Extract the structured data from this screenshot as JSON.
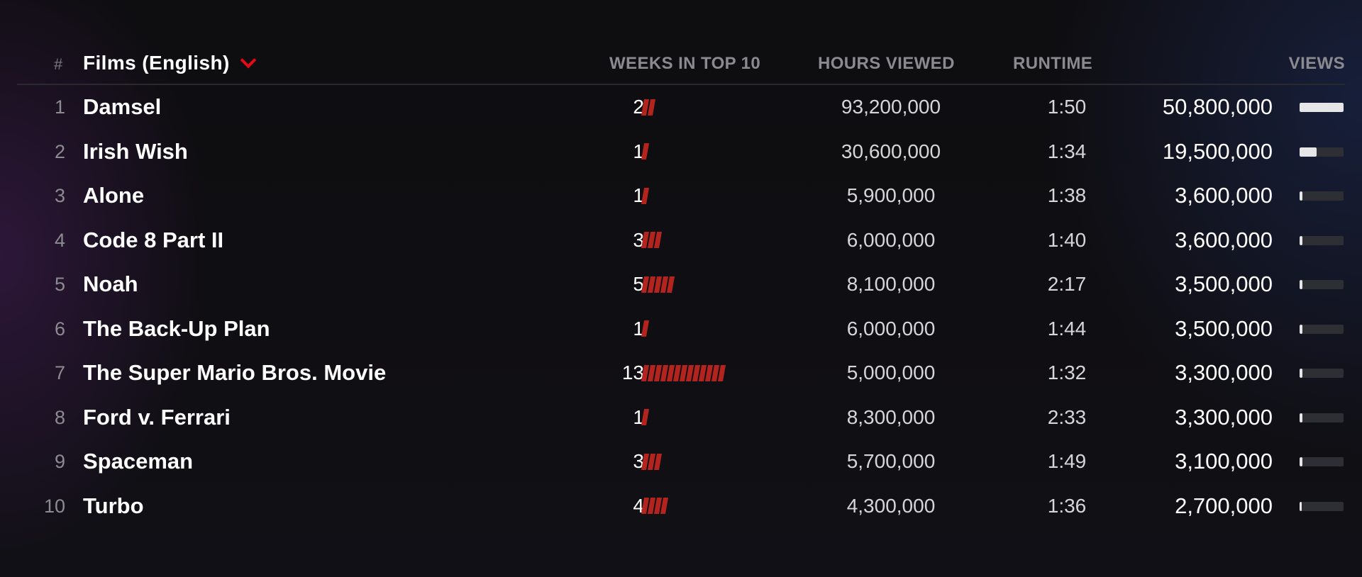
{
  "header": {
    "rank": "#",
    "title": "Films (English)",
    "weeks": "WEEKS IN TOP 10",
    "hours": "HOURS VIEWED",
    "runtime": "RUNTIME",
    "views": "VIEWS"
  },
  "colors": {
    "accent": "#e50914",
    "weeks_bar": "#b3241f",
    "views_bar": "#e6e6e8",
    "views_track": "#2e2f35"
  },
  "rows": [
    {
      "rank": "1",
      "title": "Damsel",
      "weeks": "2",
      "weeks_count": 2,
      "hours": "93,200,000",
      "runtime": "1:50",
      "views": "50,800,000",
      "views_share": 1.0
    },
    {
      "rank": "2",
      "title": "Irish Wish",
      "weeks": "1",
      "weeks_count": 1,
      "hours": "30,600,000",
      "runtime": "1:34",
      "views": "19,500,000",
      "views_share": 0.384
    },
    {
      "rank": "3",
      "title": "Alone",
      "weeks": "1",
      "weeks_count": 1,
      "hours": "5,900,000",
      "runtime": "1:38",
      "views": "3,600,000",
      "views_share": 0.071
    },
    {
      "rank": "4",
      "title": "Code 8 Part II",
      "weeks": "3",
      "weeks_count": 3,
      "hours": "6,000,000",
      "runtime": "1:40",
      "views": "3,600,000",
      "views_share": 0.071
    },
    {
      "rank": "5",
      "title": "Noah",
      "weeks": "5",
      "weeks_count": 5,
      "hours": "8,100,000",
      "runtime": "2:17",
      "views": "3,500,000",
      "views_share": 0.069
    },
    {
      "rank": "6",
      "title": "The Back-Up Plan",
      "weeks": "1",
      "weeks_count": 1,
      "hours": "6,000,000",
      "runtime": "1:44",
      "views": "3,500,000",
      "views_share": 0.069
    },
    {
      "rank": "7",
      "title": "The Super Mario Bros. Movie",
      "weeks": "13",
      "weeks_count": 13,
      "hours": "5,000,000",
      "runtime": "1:32",
      "views": "3,300,000",
      "views_share": 0.065
    },
    {
      "rank": "8",
      "title": "Ford v. Ferrari",
      "weeks": "1",
      "weeks_count": 1,
      "hours": "8,300,000",
      "runtime": "2:33",
      "views": "3,300,000",
      "views_share": 0.065
    },
    {
      "rank": "9",
      "title": "Spaceman",
      "weeks": "3",
      "weeks_count": 3,
      "hours": "5,700,000",
      "runtime": "1:49",
      "views": "3,100,000",
      "views_share": 0.061
    },
    {
      "rank": "10",
      "title": "Turbo",
      "weeks": "4",
      "weeks_count": 4,
      "hours": "4,300,000",
      "runtime": "1:36",
      "views": "2,700,000",
      "views_share": 0.053
    }
  ]
}
